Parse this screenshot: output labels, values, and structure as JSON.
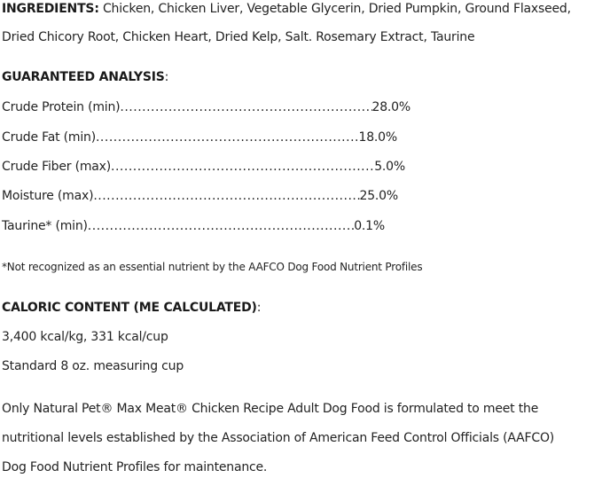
{
  "ingredients": {
    "heading": "INGREDIENTS",
    "line1": "Chicken, Chicken Liver, Vegetable Glycerin, Dried Pumpkin, Ground Flaxseed,",
    "line2": "Dried Chicory Root, Chicken Heart, Dried Kelp, Salt. Rosemary Extract, Taurine"
  },
  "analysis": {
    "heading": "GUARANTEED ANALYSIS",
    "rows": [
      {
        "label": "Crude Protein (min)",
        "value": "28.0%"
      },
      {
        "label": "Crude Fat (min)",
        "value": "18.0%"
      },
      {
        "label": "Crude Fiber (max)",
        "value": "5.0%"
      },
      {
        "label": "Moisture (max)",
        "value": "25.0%"
      },
      {
        "label": "Taurine* (min)",
        "value": "0.1%"
      }
    ],
    "footnote": "*Not recognized as an essential nutrient by the AAFCO Dog Food Nutrient Profiles"
  },
  "caloric": {
    "heading": "CALORIC CONTENT (ME CALCULATED)",
    "line1": "3,400 kcal/kg, 331 kcal/cup",
    "line2": "Standard 8 oz. measuring cup"
  },
  "statement": {
    "line1": "Only Natural Pet® Max Meat® Chicken Recipe Adult Dog Food is formulated to meet the",
    "line2": "nutritional levels established by the Association of American Feed Control Officials (AAFCO)",
    "line3": "Dog Food Nutrient Profiles for maintenance."
  }
}
